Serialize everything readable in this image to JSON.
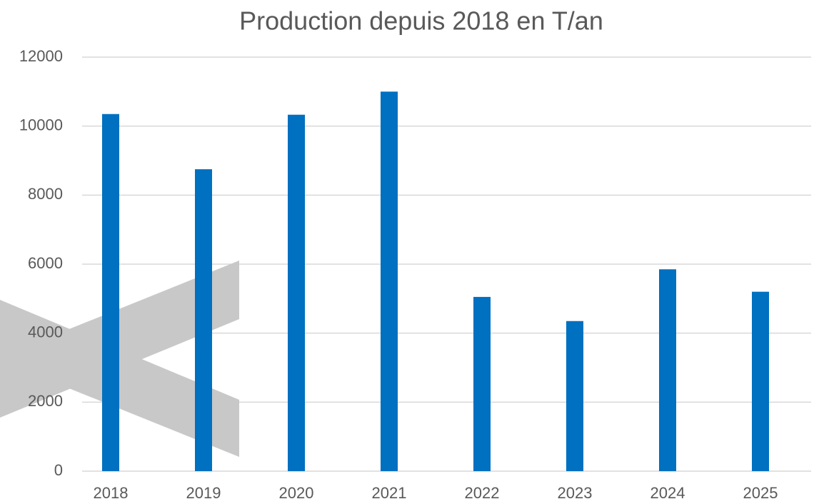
{
  "chart_data": {
    "type": "bar",
    "title": "Production depuis 2018 en T/an",
    "categories": [
      "2018",
      "2019",
      "2020",
      "2021",
      "2022",
      "2023",
      "2024",
      "2025"
    ],
    "values": [
      10350,
      8750,
      10330,
      11000,
      5050,
      4350,
      5850,
      5200
    ],
    "color": "#0070c0",
    "ylim": [
      0,
      12000
    ],
    "yticks": [
      0,
      2000,
      4000,
      6000,
      8000,
      10000,
      12000
    ],
    "grid": true
  }
}
